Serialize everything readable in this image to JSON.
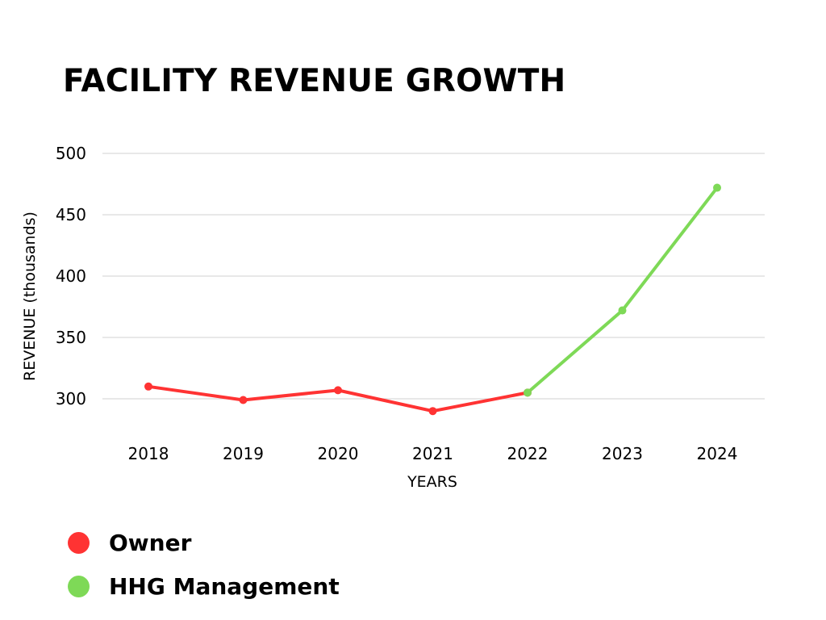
{
  "chart_data": {
    "type": "line",
    "title": "FACILITY REVENUE GROWTH",
    "xlabel": "YEARS",
    "ylabel": "REVENUE (thousands)",
    "categories": [
      "2018",
      "2019",
      "2020",
      "2021",
      "2022",
      "2023",
      "2024"
    ],
    "yticks": [
      300,
      350,
      400,
      450,
      500
    ],
    "ylim": [
      300,
      500
    ],
    "grid": true,
    "legend_position": "bottom-left",
    "series": [
      {
        "name": "Owner",
        "color": "#ff3333",
        "points": [
          [
            0,
            310
          ],
          [
            1,
            299
          ],
          [
            2,
            307
          ],
          [
            3,
            290
          ],
          [
            4,
            305
          ]
        ]
      },
      {
        "name": "HHG Management",
        "color": "#7ed957",
        "points": [
          [
            4,
            305
          ],
          [
            5,
            372
          ],
          [
            6,
            472
          ]
        ]
      }
    ]
  }
}
